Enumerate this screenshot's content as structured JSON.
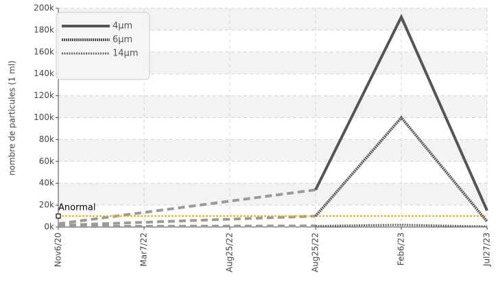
{
  "chart_data": {
    "type": "line",
    "ylabel": "nombre de particules (1 ml)",
    "categories": [
      "Nov6/20",
      "Mar7/22",
      "Aug25/22",
      "Aug25/22",
      "Feb6/23",
      "Jul27/23"
    ],
    "series": [
      {
        "name": "4µm",
        "color": "#555555",
        "style": "solid",
        "values": [
          3000,
          null,
          null,
          34000,
          192000,
          15000
        ]
      },
      {
        "name": "6µm",
        "color": "#555555",
        "style": "dotted",
        "values": [
          1500,
          null,
          null,
          10000,
          100000,
          5000
        ]
      },
      {
        "name": "14µm",
        "color": "#666666",
        "style": "fine",
        "values": [
          500,
          null,
          null,
          1000,
          2000,
          500
        ]
      }
    ],
    "gap_color": "#9a9a9a",
    "threshold": {
      "label": "Anormal",
      "value": 10000,
      "color": "#f2b400"
    },
    "ylim": [
      0,
      200000
    ],
    "yticks": [
      {
        "value": 0,
        "label": "0k"
      },
      {
        "value": 20000,
        "label": "20k"
      },
      {
        "value": 40000,
        "label": "40k"
      },
      {
        "value": 60000,
        "label": "60k"
      },
      {
        "value": 80000,
        "label": "80k"
      },
      {
        "value": 100000,
        "label": "100k"
      },
      {
        "value": 120000,
        "label": "120k"
      },
      {
        "value": 140000,
        "label": "140k"
      },
      {
        "value": 160000,
        "label": "160k"
      },
      {
        "value": 180000,
        "label": "180k"
      },
      {
        "value": 200000,
        "label": "200k"
      }
    ],
    "grid": true,
    "legend": "upper left"
  }
}
